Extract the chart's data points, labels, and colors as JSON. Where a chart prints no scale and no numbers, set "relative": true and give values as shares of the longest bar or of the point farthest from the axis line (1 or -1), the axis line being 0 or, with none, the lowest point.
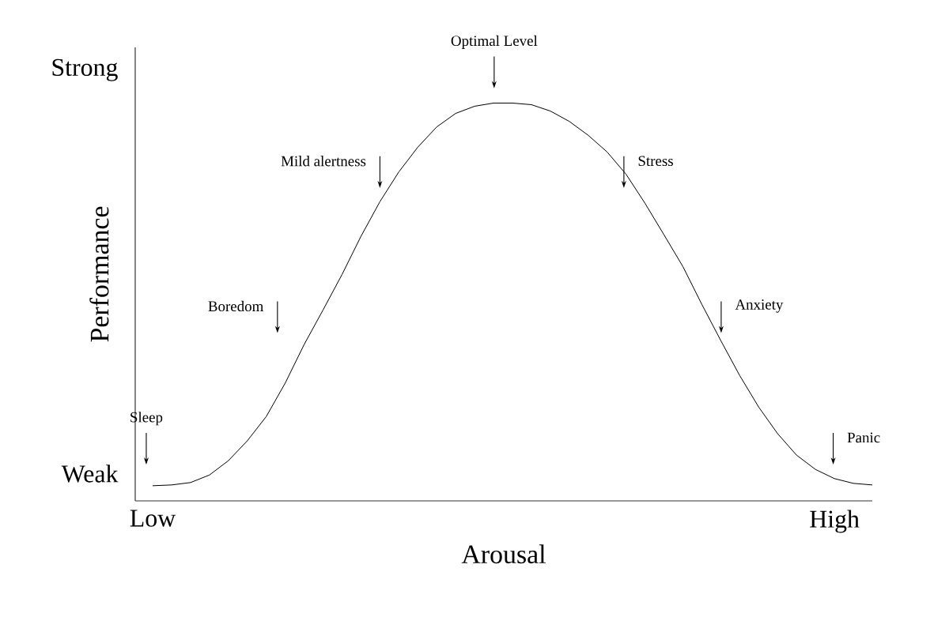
{
  "chart_data": {
    "type": "line",
    "relative": true,
    "xlabel": "Arousal",
    "ylabel": "Performance",
    "color": "#000000",
    "categories": [
      "Low",
      null,
      null,
      null,
      null,
      null,
      null,
      null,
      null,
      null,
      null,
      null,
      null,
      null,
      null,
      null,
      null,
      null,
      null,
      null,
      null,
      null,
      null,
      null,
      null,
      null,
      null,
      null,
      null,
      null,
      null,
      null,
      null,
      null,
      null,
      null,
      "High",
      null,
      null
    ],
    "values": [
      0.038,
      0.04,
      0.046,
      0.065,
      0.101,
      0.151,
      0.212,
      0.296,
      0.393,
      0.48,
      0.569,
      0.665,
      0.752,
      0.827,
      0.889,
      0.94,
      0.974,
      0.992,
      1.0,
      1.0,
      0.996,
      0.98,
      0.954,
      0.919,
      0.877,
      0.821,
      0.748,
      0.669,
      0.589,
      0.494,
      0.403,
      0.315,
      0.236,
      0.169,
      0.115,
      0.079,
      0.056,
      0.044,
      0.04
    ],
    "annotations": [
      "Strong",
      "Weak",
      "Sleep",
      "Boredom",
      "Mild alertness",
      "Optimal Level",
      "Stress",
      "Anxiety",
      "Panic"
    ]
  }
}
